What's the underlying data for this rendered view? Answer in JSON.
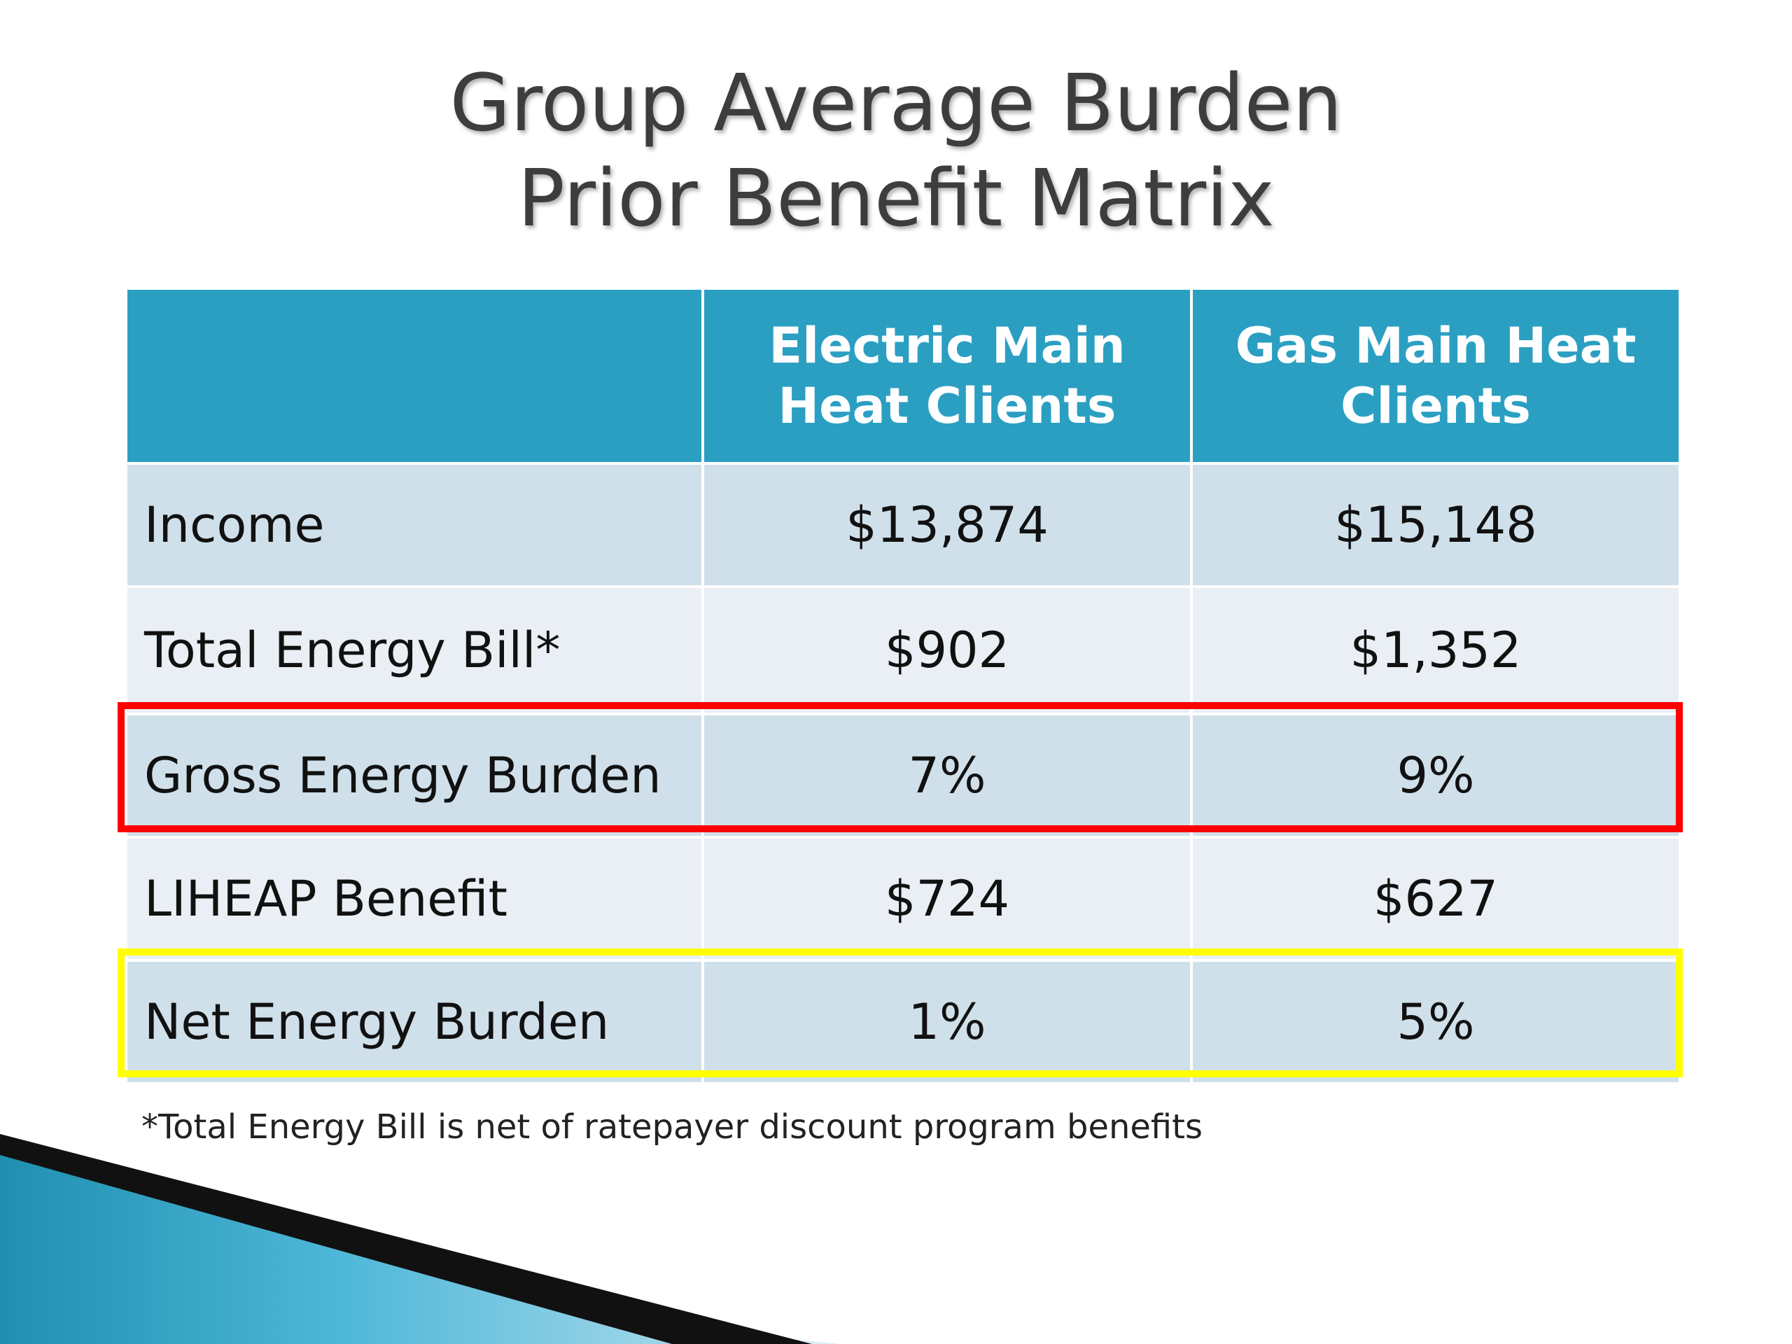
{
  "title": {
    "line1": "Group Average Burden",
    "line2": "Prior Benefit Matrix"
  },
  "table": {
    "headers": [
      "",
      "Electric Main Heat Clients",
      "Gas Main Heat Clients"
    ],
    "rows": [
      {
        "label": "Income",
        "electric": "$13,874",
        "gas": "$15,148"
      },
      {
        "label": "Total Energy Bill*",
        "electric": "$902",
        "gas": "$1,352"
      },
      {
        "label": "Gross Energy Burden",
        "electric": "7%",
        "gas": "9%"
      },
      {
        "label": "LIHEAP Benefit",
        "electric": "$724",
        "gas": "$627"
      },
      {
        "label": "Net Energy Burden",
        "electric": "1%",
        "gas": "5%"
      }
    ]
  },
  "highlights": {
    "gross_burden_color": "#ff0000",
    "net_burden_color": "#ffff00"
  },
  "footnote": "*Total Energy Bill is net of ratepayer discount program benefits",
  "colors": {
    "header_bg": "#2b9fc2",
    "row_dark": "#cfe0ea",
    "row_light": "#e9eff4",
    "accent": "#2b9fc2"
  }
}
